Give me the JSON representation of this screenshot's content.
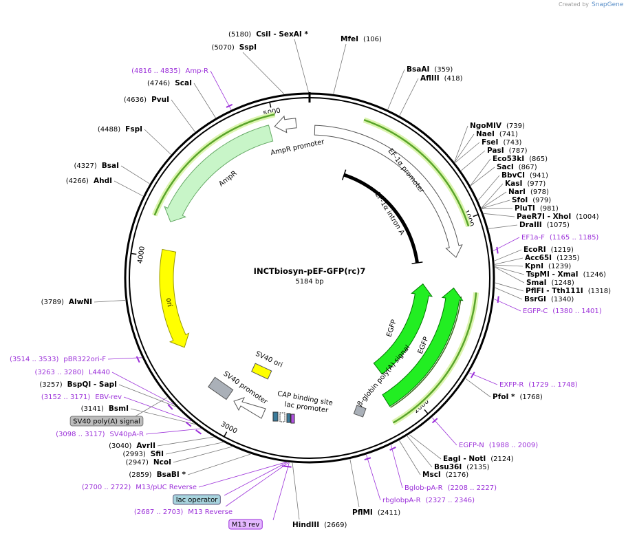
{
  "credit": {
    "prefix": "Created by",
    "brand": "SnapGene"
  },
  "plasmid": {
    "name": "INCTbiosyn-pEF-GFP(rc)7",
    "length": "5184 bp",
    "ring_labels": [
      "1000",
      "2000",
      "3000",
      "4000",
      "5000"
    ]
  },
  "enzymes": [
    {
      "name": "MfeI",
      "position": "(106)"
    },
    {
      "name": "BsaAI",
      "position": "(359)"
    },
    {
      "name": "AflIII",
      "position": "(418)"
    },
    {
      "name": "NgoMIV",
      "position": "(739)"
    },
    {
      "name": "NaeI",
      "position": "(741)"
    },
    {
      "name": "FseI",
      "position": "(743)"
    },
    {
      "name": "PasI",
      "position": "(787)"
    },
    {
      "name": "Eco53kI",
      "position": "(865)"
    },
    {
      "name": "SacI",
      "position": "(867)"
    },
    {
      "name": "BbvCI",
      "position": "(941)"
    },
    {
      "name": "KasI",
      "position": "(977)"
    },
    {
      "name": "NarI",
      "position": "(978)"
    },
    {
      "name": "SfoI",
      "position": "(979)"
    },
    {
      "name": "PluTI",
      "position": "(981)"
    },
    {
      "name": "PaeR7I - XhoI",
      "position": "(1004)"
    },
    {
      "name": "DraIII",
      "position": "(1075)"
    },
    {
      "name": "EcoRI",
      "position": "(1219)"
    },
    {
      "name": "Acc65I",
      "position": "(1235)"
    },
    {
      "name": "KpnI",
      "position": "(1239)"
    },
    {
      "name": "TspMI - XmaI",
      "position": "(1246)"
    },
    {
      "name": "SmaI",
      "position": "(1248)"
    },
    {
      "name": "PflFI - Tth111I",
      "position": "(1318)"
    },
    {
      "name": "BsrGI",
      "position": "(1340)"
    },
    {
      "name": "PfoI *",
      "position": "(1768)"
    },
    {
      "name": "EagI - NotI",
      "position": "(2124)"
    },
    {
      "name": "Bsu36I",
      "position": "(2135)"
    },
    {
      "name": "MscI",
      "position": "(2176)"
    },
    {
      "name": "PflMI",
      "position": "(2411)"
    },
    {
      "name": "HindIII",
      "position": "(2669)"
    },
    {
      "name": "CsiI - SexAI *",
      "position": "(5180)"
    },
    {
      "name": "SspI",
      "position": "(5070)"
    },
    {
      "name": "ScaI",
      "position": "(4746)"
    },
    {
      "name": "PvuI",
      "position": "(4636)"
    },
    {
      "name": "FspI",
      "position": "(4488)"
    },
    {
      "name": "BsaI",
      "position": "(4327)"
    },
    {
      "name": "AhdI",
      "position": "(4266)"
    },
    {
      "name": "AlwNI",
      "position": "(3789)"
    },
    {
      "name": "BspQI - SapI",
      "position": "(3257)"
    },
    {
      "name": "BsmI",
      "position": "(3141)"
    },
    {
      "name": "AvrII",
      "position": "(3040)"
    },
    {
      "name": "SfiI",
      "position": "(2993)"
    },
    {
      "name": "NcoI",
      "position": "(2947)"
    },
    {
      "name": "BsaBI *",
      "position": "(2859)"
    }
  ],
  "primers": [
    {
      "name": "EF1a-F",
      "position": "(1165 .. 1185)"
    },
    {
      "name": "EGFP-C",
      "position": "(1380 .. 1401)"
    },
    {
      "name": "EXFP-R",
      "position": "(1729 .. 1748)"
    },
    {
      "name": "EGFP-N",
      "position": "(1988 .. 2009)"
    },
    {
      "name": "Bglob-pA-R",
      "position": "(2208 .. 2227)"
    },
    {
      "name": "rbglobpA-R",
      "position": "(2327 .. 2346)"
    },
    {
      "name": "Amp-R",
      "position": "(4816 .. 4835)"
    },
    {
      "name": "pBR322ori-F",
      "position": "(3514 .. 3533)"
    },
    {
      "name": "L4440",
      "position": "(3263 .. 3280)"
    },
    {
      "name": "EBV-rev",
      "position": "(3152 .. 3171)"
    },
    {
      "name": "SV40pA-R",
      "position": "(3098 .. 3117)"
    },
    {
      "name": "M13/pUC Reverse",
      "position": "(2700 .. 2722)"
    },
    {
      "name": "M13 Reverse",
      "position": "(2687 .. 2703)"
    }
  ],
  "tags": [
    "SV40 poly(A) signal",
    "lac operator",
    "M13 rev"
  ],
  "features": [
    "AmpR promoter",
    "AmpR",
    "ori",
    "EF-1α promoter",
    "EF-1α intron A",
    "EGFP",
    "EGFP",
    "β-globin poly(A) signal",
    "SV40 promoter",
    "SV40 ori",
    "CAP binding site",
    "lac promoter"
  ]
}
